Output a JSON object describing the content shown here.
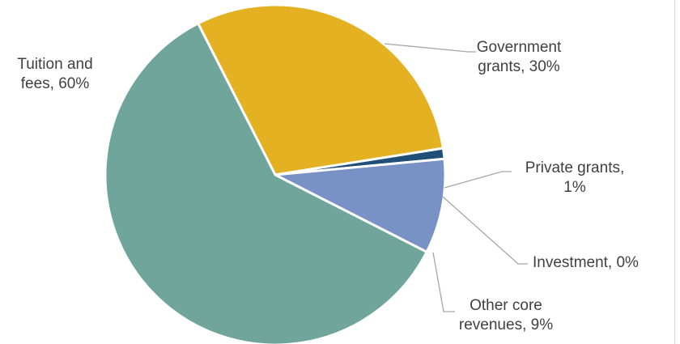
{
  "chart_data": {
    "type": "pie",
    "title": "",
    "categories": [
      "Government grants",
      "Private grants",
      "Investment",
      "Other core revenues",
      "Tuition and fees"
    ],
    "values": [
      30,
      1,
      0,
      9,
      60
    ],
    "colors": [
      "#E3B122",
      "#1F4E79",
      "#A5A5A5",
      "#7892C6",
      "#6FA59B"
    ],
    "labels": [
      [
        "Government",
        "grants, 30%"
      ],
      [
        "Private grants,",
        "1%"
      ],
      [
        "Investment, 0%"
      ],
      [
        "Other core",
        "revenues, 9%"
      ],
      [
        "Tuition and",
        "fees, 60%"
      ]
    ],
    "legend": "none"
  }
}
